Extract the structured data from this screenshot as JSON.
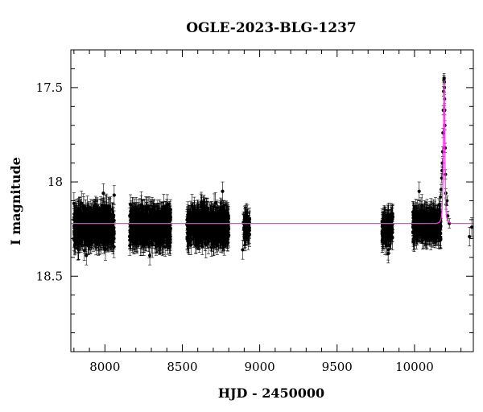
{
  "chart_data": {
    "type": "scatter",
    "title": "OGLE-2023-BLG-1237",
    "xlabel": "HJD - 2450000",
    "ylabel": "I magnitude",
    "xlim": [
      7780,
      10380
    ],
    "ylim": [
      18.9,
      17.3
    ],
    "y_inverted": true,
    "x_ticks": [
      8000,
      8500,
      9000,
      9500,
      10000
    ],
    "y_ticks": [
      17.5,
      18,
      18.5
    ],
    "grid": false,
    "colors": {
      "points": "#000000",
      "model": "#ff33ee",
      "frame": "#000000"
    },
    "baseline_mag": 18.22,
    "seasons": [
      {
        "x_range": [
          7800,
          8060
        ],
        "mag_range": [
          18.1,
          18.37
        ],
        "n_points": 780
      },
      {
        "x_range": [
          8160,
          8425
        ],
        "mag_range": [
          18.1,
          18.37
        ],
        "n_points": 720
      },
      {
        "x_range": [
          8530,
          8800
        ],
        "mag_range": [
          18.1,
          18.37
        ],
        "n_points": 720
      },
      {
        "x_range": [
          8895,
          8935
        ],
        "mag_range": [
          18.14,
          18.33
        ],
        "n_points": 70
      },
      {
        "x_range": [
          9790,
          9860
        ],
        "mag_range": [
          18.12,
          18.37
        ],
        "n_points": 140
      },
      {
        "x_range": [
          9990,
          10170
        ],
        "mag_range": [
          18.12,
          18.33
        ],
        "n_points": 420
      }
    ],
    "scatter_outliers": [
      {
        "x": 7830,
        "y": 18.36
      },
      {
        "x": 7880,
        "y": 18.39
      },
      {
        "x": 7990,
        "y": 18.06
      },
      {
        "x": 8060,
        "y": 18.07
      },
      {
        "x": 8290,
        "y": 18.39
      },
      {
        "x": 8420,
        "y": 18.34
      },
      {
        "x": 8760,
        "y": 18.05
      },
      {
        "x": 8890,
        "y": 18.36
      },
      {
        "x": 8900,
        "y": 18.29
      },
      {
        "x": 9830,
        "y": 18.38
      },
      {
        "x": 9990,
        "y": 18.24
      },
      {
        "x": 10030,
        "y": 18.05
      },
      {
        "x": 10355,
        "y": 18.29
      },
      {
        "x": 10370,
        "y": 18.24
      }
    ],
    "event": {
      "t0": 10192,
      "peak_mag": 17.45,
      "points": [
        {
          "x": 10160,
          "y": 18.12
        },
        {
          "x": 10168,
          "y": 18.08
        },
        {
          "x": 10172,
          "y": 18.04
        },
        {
          "x": 10176,
          "y": 17.98
        },
        {
          "x": 10178,
          "y": 17.94
        },
        {
          "x": 10180,
          "y": 17.9
        },
        {
          "x": 10182,
          "y": 17.84
        },
        {
          "x": 10184,
          "y": 17.74
        },
        {
          "x": 10186,
          "y": 17.62
        },
        {
          "x": 10188,
          "y": 17.52
        },
        {
          "x": 10190,
          "y": 17.46
        },
        {
          "x": 10191,
          "y": 17.45
        },
        {
          "x": 10192,
          "y": 17.47
        },
        {
          "x": 10193,
          "y": 17.5
        },
        {
          "x": 10194,
          "y": 17.56
        },
        {
          "x": 10195,
          "y": 17.62
        },
        {
          "x": 10196,
          "y": 17.7
        },
        {
          "x": 10198,
          "y": 17.82
        },
        {
          "x": 10200,
          "y": 17.96
        },
        {
          "x": 10202,
          "y": 18.06
        },
        {
          "x": 10205,
          "y": 18.12
        },
        {
          "x": 10210,
          "y": 18.1
        },
        {
          "x": 10215,
          "y": 18.18
        },
        {
          "x": 10225,
          "y": 18.22
        }
      ]
    },
    "model_curve": [
      {
        "x": 7780,
        "y": 18.22
      },
      {
        "x": 10140,
        "y": 18.22
      },
      {
        "x": 10160,
        "y": 18.215
      },
      {
        "x": 10170,
        "y": 18.2
      },
      {
        "x": 10176,
        "y": 18.17
      },
      {
        "x": 10180,
        "y": 18.1
      },
      {
        "x": 10183,
        "y": 18.0
      },
      {
        "x": 10185,
        "y": 17.88
      },
      {
        "x": 10187,
        "y": 17.72
      },
      {
        "x": 10189,
        "y": 17.56
      },
      {
        "x": 10190,
        "y": 17.49
      },
      {
        "x": 10191,
        "y": 17.46
      },
      {
        "x": 10192,
        "y": 17.47
      },
      {
        "x": 10193,
        "y": 17.52
      },
      {
        "x": 10194,
        "y": 17.6
      },
      {
        "x": 10196,
        "y": 17.78
      },
      {
        "x": 10198,
        "y": 17.96
      },
      {
        "x": 10201,
        "y": 18.1
      },
      {
        "x": 10205,
        "y": 18.18
      },
      {
        "x": 10215,
        "y": 18.21
      },
      {
        "x": 10240,
        "y": 18.22
      },
      {
        "x": 10380,
        "y": 18.22
      }
    ]
  }
}
